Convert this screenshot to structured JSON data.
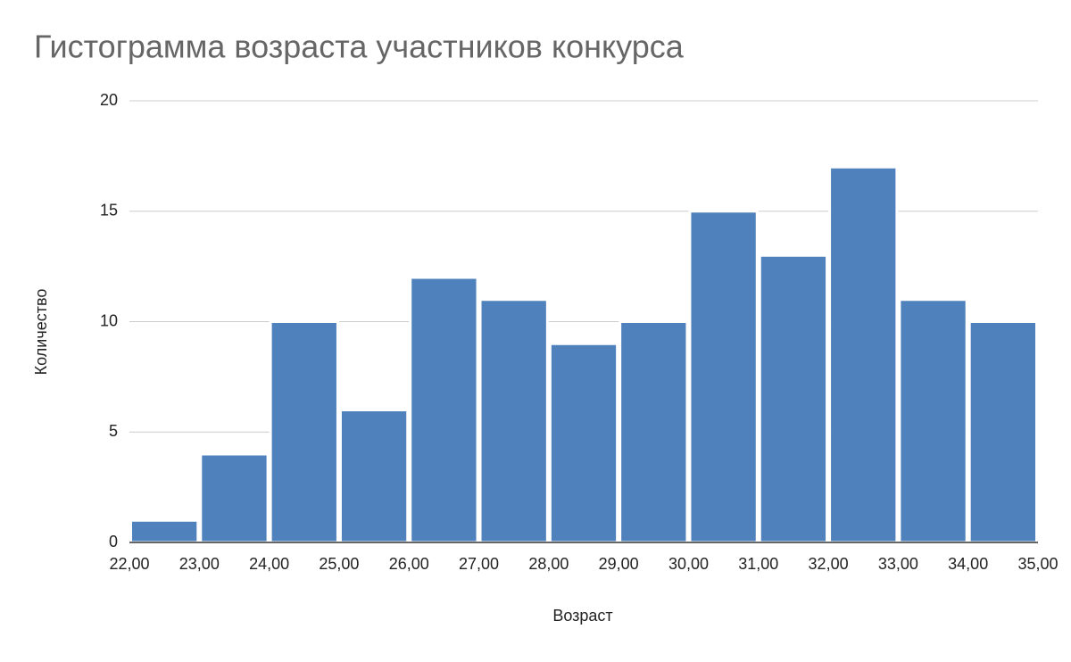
{
  "chart_data": {
    "type": "histogram",
    "title": "Гистограмма возраста участников конкурса",
    "x_label": "Возраст",
    "y_label": "Количество",
    "bins": [
      22,
      23,
      24,
      25,
      26,
      27,
      28,
      29,
      30,
      31,
      32,
      33,
      34,
      35
    ],
    "values": [
      1,
      4,
      10,
      6,
      12,
      11,
      9,
      10,
      15,
      13,
      17,
      11,
      10
    ],
    "color": "#4f81bd",
    "xlim": [
      22,
      35
    ],
    "xticks": [
      {
        "value": 22,
        "label": "22,00"
      },
      {
        "value": 23,
        "label": "23,00"
      },
      {
        "value": 24,
        "label": "24,00"
      },
      {
        "value": 25,
        "label": "25,00"
      },
      {
        "value": 26,
        "label": "26,00"
      },
      {
        "value": 27,
        "label": "27,00"
      },
      {
        "value": 28,
        "label": "28,00"
      },
      {
        "value": 29,
        "label": "29,00"
      },
      {
        "value": 30,
        "label": "30,00"
      },
      {
        "value": 31,
        "label": "31,00"
      },
      {
        "value": 32,
        "label": "32,00"
      },
      {
        "value": 33,
        "label": "33,00"
      },
      {
        "value": 34,
        "label": "34,00"
      },
      {
        "value": 35,
        "label": "35,00"
      }
    ],
    "ylim": [
      0,
      20
    ],
    "yticks": [
      0,
      5,
      10,
      15,
      20
    ],
    "grid": true
  }
}
